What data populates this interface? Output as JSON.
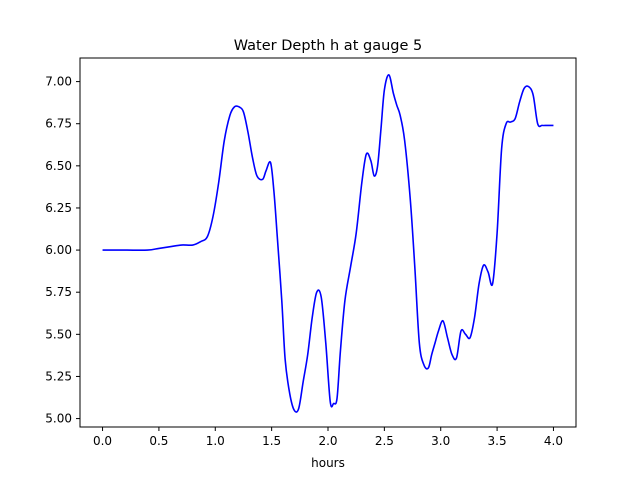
{
  "chart_data": {
    "type": "line",
    "title": "Water Depth h at gauge 5",
    "xlabel": "hours",
    "ylabel": "",
    "xlim": [
      -0.2,
      4.2
    ],
    "ylim": [
      4.95,
      7.14
    ],
    "xticks": [
      0.0,
      0.5,
      1.0,
      1.5,
      2.0,
      2.5,
      3.0,
      3.5,
      4.0
    ],
    "xtick_labels": [
      "0.0",
      "0.5",
      "1.0",
      "1.5",
      "2.0",
      "2.5",
      "3.0",
      "3.5",
      "4.0"
    ],
    "yticks": [
      5.0,
      5.25,
      5.5,
      5.75,
      6.0,
      6.25,
      6.5,
      6.75,
      7.0
    ],
    "ytick_labels": [
      "5.00",
      "5.25",
      "5.50",
      "5.75",
      "6.00",
      "6.25",
      "6.50",
      "6.75",
      "7.00"
    ],
    "grid": false,
    "series": [
      {
        "name": "",
        "color": "#0000ff",
        "x": [
          0.0,
          0.2,
          0.4,
          0.5,
          0.6,
          0.7,
          0.8,
          0.87,
          0.93,
          0.98,
          1.03,
          1.08,
          1.13,
          1.17,
          1.21,
          1.25,
          1.29,
          1.33,
          1.37,
          1.42,
          1.45,
          1.49,
          1.52,
          1.55,
          1.59,
          1.62,
          1.66,
          1.7,
          1.74,
          1.78,
          1.82,
          1.86,
          1.9,
          1.94,
          1.98,
          2.02,
          2.05,
          2.08,
          2.11,
          2.15,
          2.2,
          2.25,
          2.3,
          2.34,
          2.38,
          2.41,
          2.44,
          2.47,
          2.5,
          2.54,
          2.58,
          2.61,
          2.64,
          2.68,
          2.73,
          2.77,
          2.81,
          2.85,
          2.89,
          2.92,
          2.95,
          2.98,
          3.02,
          3.06,
          3.1,
          3.14,
          3.18,
          3.22,
          3.26,
          3.3,
          3.34,
          3.38,
          3.42,
          3.46,
          3.5,
          3.54,
          3.58,
          3.62,
          3.66,
          3.7,
          3.74,
          3.78,
          3.82,
          3.86,
          3.9,
          3.94,
          3.97,
          4.0
        ],
        "y": [
          6.0,
          6.0,
          6.0,
          6.01,
          6.02,
          6.03,
          6.03,
          6.05,
          6.08,
          6.2,
          6.4,
          6.65,
          6.8,
          6.85,
          6.85,
          6.82,
          6.7,
          6.55,
          6.44,
          6.42,
          6.47,
          6.52,
          6.35,
          6.08,
          5.7,
          5.35,
          5.15,
          5.05,
          5.06,
          5.22,
          5.38,
          5.6,
          5.75,
          5.72,
          5.45,
          5.1,
          5.09,
          5.12,
          5.4,
          5.7,
          5.9,
          6.1,
          6.4,
          6.57,
          6.53,
          6.44,
          6.5,
          6.72,
          6.95,
          7.04,
          6.93,
          6.86,
          6.8,
          6.65,
          6.3,
          5.9,
          5.45,
          5.32,
          5.3,
          5.38,
          5.45,
          5.52,
          5.58,
          5.48,
          5.38,
          5.36,
          5.52,
          5.5,
          5.48,
          5.6,
          5.8,
          5.91,
          5.87,
          5.8,
          6.1,
          6.6,
          6.75,
          6.76,
          6.78,
          6.88,
          6.96,
          6.97,
          6.92,
          6.75,
          6.74,
          6.74,
          6.74,
          6.74
        ]
      }
    ]
  }
}
